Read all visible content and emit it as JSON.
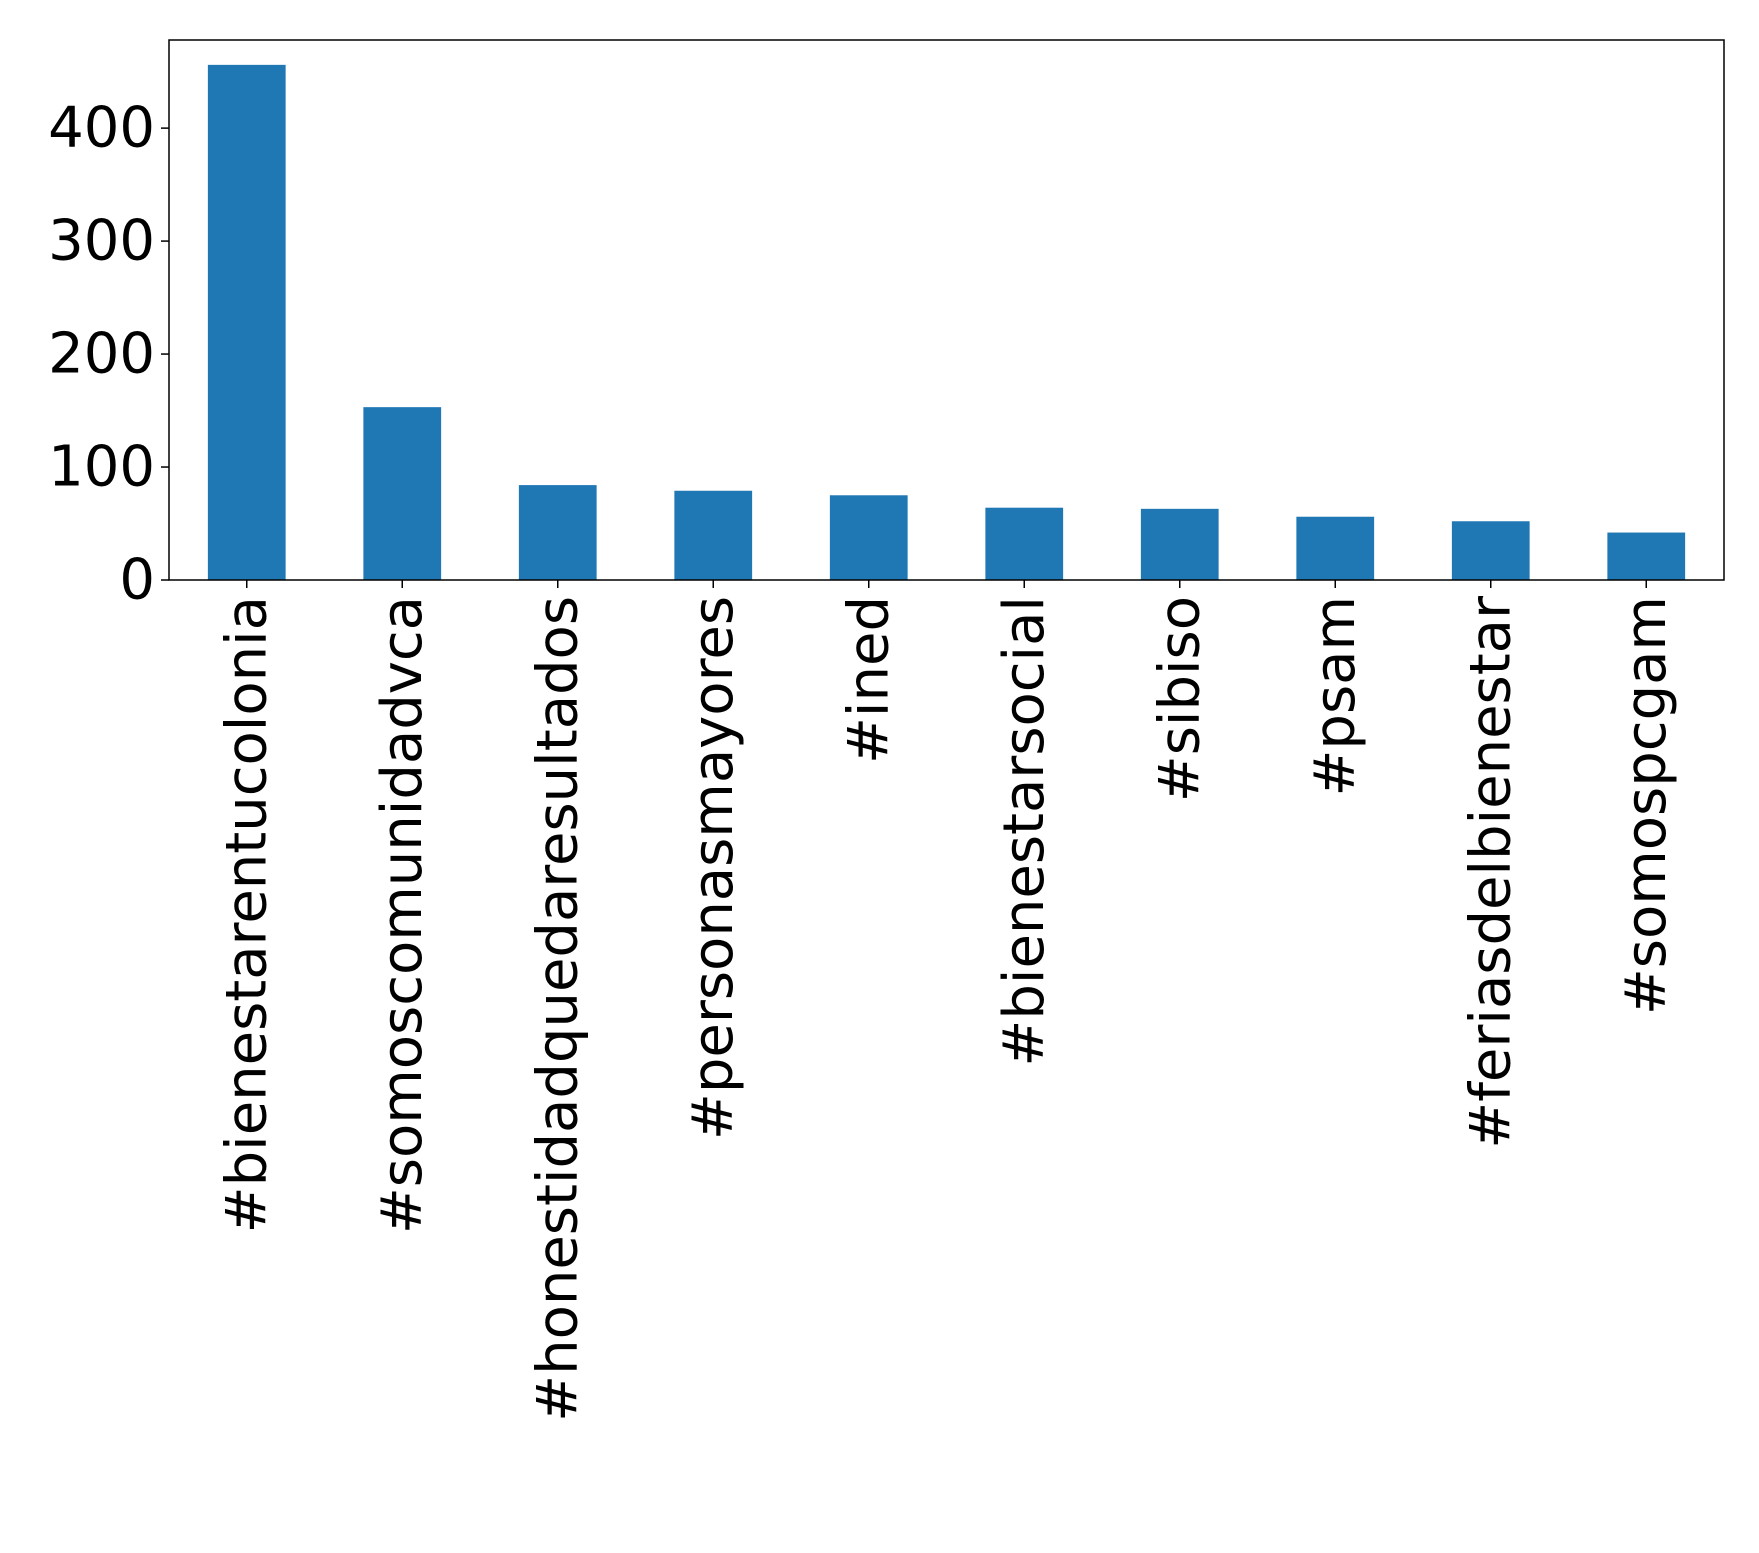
{
  "chart_data": {
    "type": "bar",
    "categories": [
      "#bienestarentucolonia",
      "#somoscomunidadvca",
      "#honestidadquedaresultados",
      "#personasmayores",
      "#ined",
      "#bienestarsocial",
      "#sibiso",
      "#psam",
      "#feriasdelbienestar",
      "#somospcgam"
    ],
    "values": [
      456,
      153,
      84,
      79,
      75,
      64,
      63,
      56,
      52,
      42
    ],
    "yticks": [
      0,
      100,
      200,
      300,
      400
    ],
    "ylim": [
      0,
      478
    ],
    "bar_color": "#1f77b4",
    "title": "",
    "xlabel": "",
    "ylabel": "",
    "grid": false,
    "legend": "none"
  }
}
